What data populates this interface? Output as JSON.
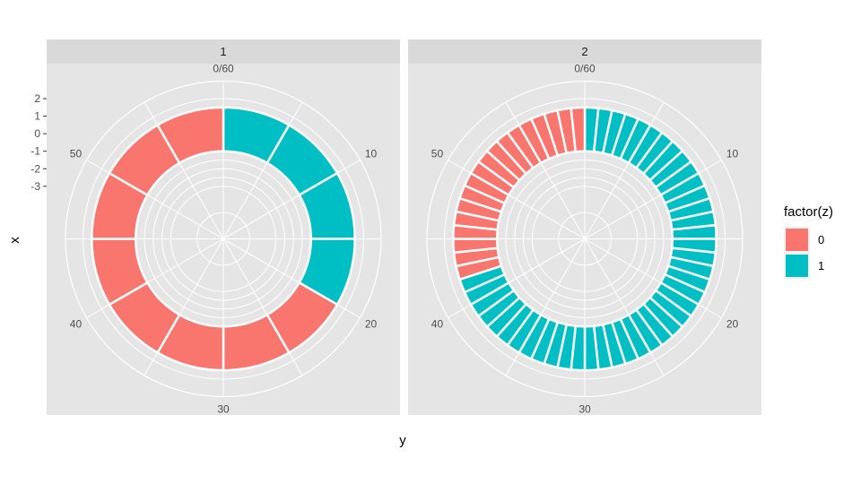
{
  "chart_data": {
    "type": "polar-bar",
    "xlabel": "y",
    "ylabel": "x",
    "theta_ticks": [
      "0/60",
      "10",
      "20",
      "30",
      "40",
      "50"
    ],
    "theta_tick_values": [
      0,
      10,
      20,
      30,
      40,
      50
    ],
    "theta_range": [
      0,
      60
    ],
    "radial_ticks": [
      "2",
      "1",
      "0",
      "-1",
      "-2",
      "-3"
    ],
    "radial_range": [
      -6,
      3
    ],
    "bar_radial": {
      "inner": -1,
      "outer": 1.5
    },
    "legend": {
      "title": "factor(z)",
      "placement": "right",
      "entries": [
        {
          "label": "0",
          "color": "#F8766D"
        },
        {
          "label": "1",
          "color": "#00BFC4"
        }
      ]
    },
    "facets": [
      {
        "label": "1",
        "segment_width": 5,
        "segments": [
          {
            "start": 0,
            "end": 5,
            "z": 1
          },
          {
            "start": 5,
            "end": 10,
            "z": 1
          },
          {
            "start": 10,
            "end": 15,
            "z": 1
          },
          {
            "start": 15,
            "end": 20,
            "z": 1
          },
          {
            "start": 20,
            "end": 25,
            "z": 0
          },
          {
            "start": 25,
            "end": 30,
            "z": 0
          },
          {
            "start": 30,
            "end": 35,
            "z": 0
          },
          {
            "start": 35,
            "end": 40,
            "z": 0
          },
          {
            "start": 40,
            "end": 45,
            "z": 0
          },
          {
            "start": 45,
            "end": 50,
            "z": 0
          },
          {
            "start": 50,
            "end": 55,
            "z": 0
          },
          {
            "start": 55,
            "end": 60,
            "z": 0
          }
        ]
      },
      {
        "label": "2",
        "segment_width": 1,
        "z1_range": [
          0,
          42
        ],
        "z0_range": [
          42,
          60
        ]
      }
    ]
  },
  "colors": {
    "panel_bg": "#E5E5E5",
    "strip_bg": "#D9D9D9",
    "grid": "#FFFFFF",
    "z0": "#F8766D",
    "z1": "#00BFC4"
  }
}
